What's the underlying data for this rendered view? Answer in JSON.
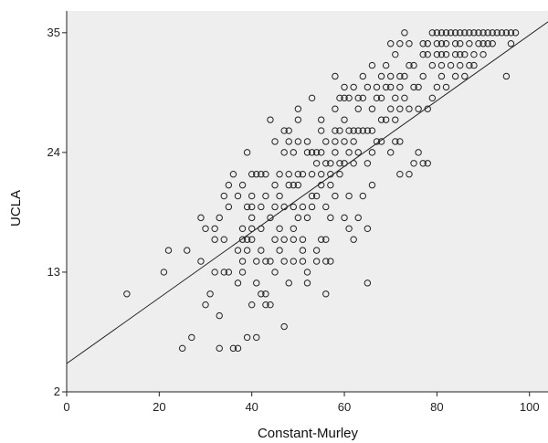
{
  "chart_data": {
    "type": "scatter",
    "title": "",
    "xlabel": "Constant-Murley",
    "ylabel": "UCLA",
    "xlim": [
      0,
      104
    ],
    "ylim": [
      2,
      37
    ],
    "xticks": [
      0,
      20,
      40,
      60,
      80,
      100
    ],
    "yticks": [
      2,
      13,
      24,
      35
    ],
    "grid": false,
    "legend": "none",
    "colors": {
      "plot_background": "#eeeeee",
      "marker": "#222222",
      "line": "#222222",
      "axes": "#222222"
    },
    "fit_line": {
      "from": [
        0,
        4.6
      ],
      "to": [
        104,
        36.0
      ]
    },
    "points": [
      [
        13,
        11
      ],
      [
        21,
        13
      ],
      [
        22,
        15
      ],
      [
        25,
        6
      ],
      [
        26,
        15
      ],
      [
        27,
        7
      ],
      [
        29,
        14
      ],
      [
        29,
        18
      ],
      [
        30,
        17
      ],
      [
        30,
        10
      ],
      [
        31,
        11
      ],
      [
        32,
        13
      ],
      [
        32,
        16
      ],
      [
        32,
        17
      ],
      [
        33,
        18
      ],
      [
        33,
        9
      ],
      [
        33,
        6
      ],
      [
        34,
        16
      ],
      [
        34,
        13
      ],
      [
        34,
        20
      ],
      [
        35,
        13
      ],
      [
        35,
        19
      ],
      [
        35,
        21
      ],
      [
        36,
        6
      ],
      [
        36,
        22
      ],
      [
        37,
        6
      ],
      [
        37,
        12
      ],
      [
        37,
        15
      ],
      [
        37,
        20
      ],
      [
        38,
        14
      ],
      [
        38,
        16
      ],
      [
        38,
        17
      ],
      [
        38,
        21
      ],
      [
        38,
        13
      ],
      [
        39,
        7
      ],
      [
        39,
        16
      ],
      [
        39,
        15
      ],
      [
        39,
        19
      ],
      [
        39,
        24
      ],
      [
        40,
        19
      ],
      [
        40,
        20
      ],
      [
        40,
        17
      ],
      [
        40,
        18
      ],
      [
        40,
        22
      ],
      [
        40,
        10
      ],
      [
        40,
        16
      ],
      [
        41,
        7
      ],
      [
        41,
        12
      ],
      [
        41,
        22
      ],
      [
        41,
        14
      ],
      [
        42,
        19
      ],
      [
        42,
        17
      ],
      [
        42,
        15
      ],
      [
        42,
        22
      ],
      [
        42,
        11
      ],
      [
        43,
        14
      ],
      [
        43,
        20
      ],
      [
        43,
        10
      ],
      [
        43,
        11
      ],
      [
        43,
        22
      ],
      [
        44,
        10
      ],
      [
        44,
        14
      ],
      [
        44,
        18
      ],
      [
        44,
        27
      ],
      [
        45,
        21
      ],
      [
        45,
        25
      ],
      [
        45,
        19
      ],
      [
        45,
        13
      ],
      [
        45,
        16
      ],
      [
        46,
        20
      ],
      [
        46,
        15
      ],
      [
        46,
        22
      ],
      [
        46,
        17
      ],
      [
        47,
        26
      ],
      [
        47,
        8
      ],
      [
        47,
        16
      ],
      [
        47,
        14
      ],
      [
        47,
        19
      ],
      [
        47,
        24
      ],
      [
        48,
        21
      ],
      [
        48,
        22
      ],
      [
        48,
        25
      ],
      [
        48,
        12
      ],
      [
        48,
        26
      ],
      [
        49,
        17
      ],
      [
        49,
        19
      ],
      [
        49,
        21
      ],
      [
        49,
        24
      ],
      [
        49,
        14
      ],
      [
        49,
        16
      ],
      [
        50,
        25
      ],
      [
        50,
        21
      ],
      [
        50,
        28
      ],
      [
        50,
        27
      ],
      [
        50,
        18
      ],
      [
        50,
        22
      ],
      [
        51,
        14
      ],
      [
        51,
        19
      ],
      [
        51,
        15
      ],
      [
        51,
        22
      ],
      [
        51,
        16
      ],
      [
        52,
        12
      ],
      [
        52,
        24
      ],
      [
        52,
        13
      ],
      [
        52,
        25
      ],
      [
        52,
        18
      ],
      [
        53,
        20
      ],
      [
        53,
        24
      ],
      [
        53,
        19
      ],
      [
        53,
        22
      ],
      [
        53,
        29
      ],
      [
        54,
        23
      ],
      [
        54,
        15
      ],
      [
        54,
        14
      ],
      [
        54,
        20
      ],
      [
        54,
        24
      ],
      [
        55,
        16
      ],
      [
        55,
        21
      ],
      [
        55,
        22
      ],
      [
        55,
        26
      ],
      [
        55,
        24
      ],
      [
        55,
        27
      ],
      [
        56,
        11
      ],
      [
        56,
        14
      ],
      [
        56,
        16
      ],
      [
        56,
        19
      ],
      [
        56,
        23
      ],
      [
        56,
        25
      ],
      [
        57,
        14
      ],
      [
        57,
        18
      ],
      [
        57,
        21
      ],
      [
        57,
        23
      ],
      [
        57,
        22
      ],
      [
        58,
        31
      ],
      [
        58,
        20
      ],
      [
        58,
        25
      ],
      [
        58,
        26
      ],
      [
        58,
        28
      ],
      [
        58,
        24
      ],
      [
        59,
        23
      ],
      [
        59,
        26
      ],
      [
        59,
        29
      ],
      [
        59,
        22
      ],
      [
        60,
        18
      ],
      [
        60,
        23
      ],
      [
        60,
        25
      ],
      [
        60,
        27
      ],
      [
        60,
        29
      ],
      [
        60,
        30
      ],
      [
        61,
        17
      ],
      [
        61,
        29
      ],
      [
        61,
        26
      ],
      [
        61,
        24
      ],
      [
        61,
        20
      ],
      [
        62,
        16
      ],
      [
        62,
        23
      ],
      [
        62,
        25
      ],
      [
        62,
        26
      ],
      [
        62,
        30
      ],
      [
        63,
        18
      ],
      [
        63,
        24
      ],
      [
        63,
        26
      ],
      [
        63,
        28
      ],
      [
        63,
        29
      ],
      [
        64,
        20
      ],
      [
        64,
        26
      ],
      [
        64,
        29
      ],
      [
        64,
        31
      ],
      [
        65,
        12
      ],
      [
        65,
        17
      ],
      [
        65,
        23
      ],
      [
        65,
        26
      ],
      [
        65,
        30
      ],
      [
        66,
        21
      ],
      [
        66,
        24
      ],
      [
        66,
        26
      ],
      [
        66,
        28
      ],
      [
        66,
        32
      ],
      [
        67,
        25
      ],
      [
        67,
        29
      ],
      [
        67,
        30
      ],
      [
        68,
        25
      ],
      [
        68,
        27
      ],
      [
        68,
        29
      ],
      [
        68,
        31
      ],
      [
        69,
        27
      ],
      [
        69,
        30
      ],
      [
        69,
        32
      ],
      [
        70,
        24
      ],
      [
        70,
        28
      ],
      [
        70,
        30
      ],
      [
        70,
        31
      ],
      [
        70,
        34
      ],
      [
        71,
        25
      ],
      [
        71,
        27
      ],
      [
        71,
        29
      ],
      [
        71,
        33
      ],
      [
        72,
        22
      ],
      [
        72,
        25
      ],
      [
        72,
        28
      ],
      [
        72,
        30
      ],
      [
        72,
        31
      ],
      [
        72,
        34
      ],
      [
        73,
        29
      ],
      [
        73,
        31
      ],
      [
        73,
        35
      ],
      [
        74,
        22
      ],
      [
        74,
        28
      ],
      [
        74,
        32
      ],
      [
        74,
        34
      ],
      [
        75,
        23
      ],
      [
        75,
        30
      ],
      [
        75,
        32
      ],
      [
        76,
        24
      ],
      [
        76,
        28
      ],
      [
        76,
        30
      ],
      [
        77,
        23
      ],
      [
        77,
        31
      ],
      [
        77,
        33
      ],
      [
        77,
        34
      ],
      [
        78,
        23
      ],
      [
        78,
        28
      ],
      [
        78,
        33
      ],
      [
        78,
        34
      ],
      [
        79,
        29
      ],
      [
        79,
        32
      ],
      [
        79,
        35
      ],
      [
        80,
        30
      ],
      [
        80,
        33
      ],
      [
        80,
        34
      ],
      [
        80,
        35
      ],
      [
        81,
        31
      ],
      [
        81,
        32
      ],
      [
        81,
        33
      ],
      [
        81,
        34
      ],
      [
        81,
        35
      ],
      [
        82,
        30
      ],
      [
        82,
        33
      ],
      [
        82,
        34
      ],
      [
        82,
        35
      ],
      [
        83,
        32
      ],
      [
        83,
        35
      ],
      [
        84,
        31
      ],
      [
        84,
        33
      ],
      [
        84,
        34
      ],
      [
        84,
        35
      ],
      [
        85,
        32
      ],
      [
        85,
        33
      ],
      [
        85,
        34
      ],
      [
        85,
        35
      ],
      [
        86,
        31
      ],
      [
        86,
        33
      ],
      [
        86,
        35
      ],
      [
        87,
        32
      ],
      [
        87,
        34
      ],
      [
        87,
        35
      ],
      [
        88,
        32
      ],
      [
        88,
        33
      ],
      [
        88,
        35
      ],
      [
        89,
        34
      ],
      [
        89,
        35
      ],
      [
        90,
        33
      ],
      [
        90,
        34
      ],
      [
        90,
        35
      ],
      [
        91,
        34
      ],
      [
        91,
        35
      ],
      [
        92,
        34
      ],
      [
        92,
        35
      ],
      [
        93,
        35
      ],
      [
        94,
        35
      ],
      [
        95,
        31
      ],
      [
        95,
        35
      ],
      [
        96,
        34
      ],
      [
        96,
        35
      ],
      [
        97,
        35
      ]
    ]
  }
}
